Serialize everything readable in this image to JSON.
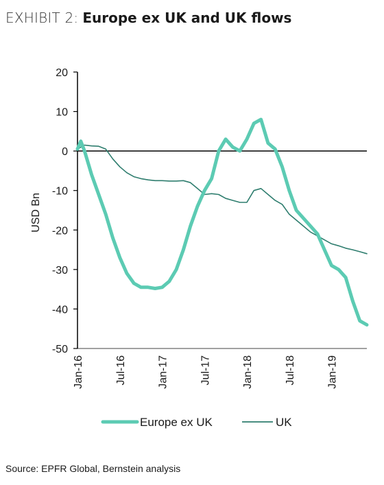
{
  "header": {
    "exhibit": "EXHIBIT 2:",
    "title": "Europe ex UK and UK flows"
  },
  "source": "Source: EPFR Global, Bernstein analysis",
  "colors": {
    "europe": "#5ccbb3",
    "uk": "#2e7d6e",
    "axis": "#000000"
  },
  "chart_data": {
    "type": "line",
    "title": "Europe ex UK and UK flows",
    "ylabel": "USD Bn",
    "xlabel": "",
    "ylim": [
      -50,
      20
    ],
    "yticks": [
      20,
      10,
      0,
      -10,
      -20,
      -30,
      -40,
      -50
    ],
    "xlim": [
      "2016-01",
      "2019-06"
    ],
    "xtick_labels": [
      "Jan-16",
      "Jul-16",
      "Jan-17",
      "Jul-17",
      "Jan-18",
      "Jul-18",
      "Jan-19"
    ],
    "xtick_positions": [
      "2016-01",
      "2016-07",
      "2017-01",
      "2017-07",
      "2018-01",
      "2018-07",
      "2019-01"
    ],
    "grid": false,
    "legend": "bottom",
    "series": [
      {
        "name": "Europe ex UK",
        "x": [
          "2016-01",
          "2016-01-15",
          "2016-02",
          "2016-03",
          "2016-04",
          "2016-05",
          "2016-06",
          "2016-07",
          "2016-08",
          "2016-09",
          "2016-10",
          "2016-11",
          "2016-12",
          "2017-01",
          "2017-02",
          "2017-03",
          "2017-04",
          "2017-05",
          "2017-06",
          "2017-07",
          "2017-08",
          "2017-09",
          "2017-10",
          "2017-11",
          "2017-12",
          "2018-01",
          "2018-02",
          "2018-03",
          "2018-04",
          "2018-05",
          "2018-06",
          "2018-07",
          "2018-08",
          "2018-09",
          "2018-10",
          "2018-11",
          "2018-12",
          "2019-01",
          "2019-02",
          "2019-03",
          "2019-04",
          "2019-05",
          "2019-06"
        ],
        "y": [
          0.5,
          2.5,
          0,
          -6,
          -11,
          -16,
          -22,
          -27,
          -31,
          -33.5,
          -34.5,
          -34.5,
          -34.8,
          -34.5,
          -33,
          -30,
          -25,
          -19,
          -14,
          -10,
          -7,
          0,
          3,
          1,
          0,
          3,
          7,
          8,
          2,
          0.5,
          -4,
          -10,
          -15,
          -17,
          -19,
          -21,
          -25,
          -29,
          -30,
          -32,
          -38,
          -43,
          -44
        ]
      },
      {
        "name": "UK",
        "x": [
          "2016-01",
          "2016-02",
          "2016-03",
          "2016-04",
          "2016-05",
          "2016-06",
          "2016-07",
          "2016-08",
          "2016-09",
          "2016-10",
          "2016-11",
          "2016-12",
          "2017-01",
          "2017-02",
          "2017-03",
          "2017-04",
          "2017-05",
          "2017-06",
          "2017-07",
          "2017-08",
          "2017-09",
          "2017-10",
          "2017-11",
          "2017-12",
          "2018-01",
          "2018-02",
          "2018-03",
          "2018-04",
          "2018-05",
          "2018-06",
          "2018-07",
          "2018-08",
          "2018-09",
          "2018-10",
          "2018-11",
          "2018-12",
          "2019-01",
          "2019-02",
          "2019-03",
          "2019-04",
          "2019-05",
          "2019-06"
        ],
        "y": [
          0.5,
          1.5,
          1.3,
          1.2,
          0.5,
          -2,
          -4,
          -5.5,
          -6.5,
          -7,
          -7.3,
          -7.5,
          -7.5,
          -7.6,
          -7.6,
          -7.5,
          -8,
          -9.5,
          -11,
          -10.8,
          -11,
          -12,
          -12.5,
          -13,
          -13,
          -10,
          -9.5,
          -11,
          -12.5,
          -13.5,
          -16,
          -17.5,
          -19,
          -20.5,
          -21.5,
          -22.5,
          -23.5,
          -24,
          -24.6,
          -25,
          -25.5,
          -26
        ]
      }
    ]
  }
}
